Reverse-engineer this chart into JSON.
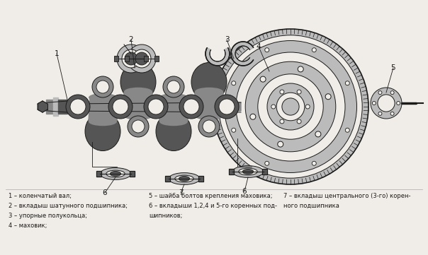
{
  "bg": "#f0ede8",
  "fg": "#1a1a1a",
  "gray1": "#888888",
  "gray2": "#555555",
  "gray3": "#bbbbbb",
  "white": "#ffffff",
  "fig_w": 6.04,
  "fig_h": 3.61,
  "dpi": 100,
  "legend": {
    "col1": [
      "1 – коленчатый вал;",
      "2 – вкладыш шатунного подшипника;",
      "3 – упорные полукольца;",
      "4 – маховик;"
    ],
    "col2": [
      "5 – шайба болтов крепления маховика;",
      "6 – вкладыши 1,2,4 и 5-го коренных под-",
      "шипников;"
    ],
    "col3": [
      "7 – вкладыш центрального (3-го) корен-",
      "ного подшипника"
    ]
  }
}
